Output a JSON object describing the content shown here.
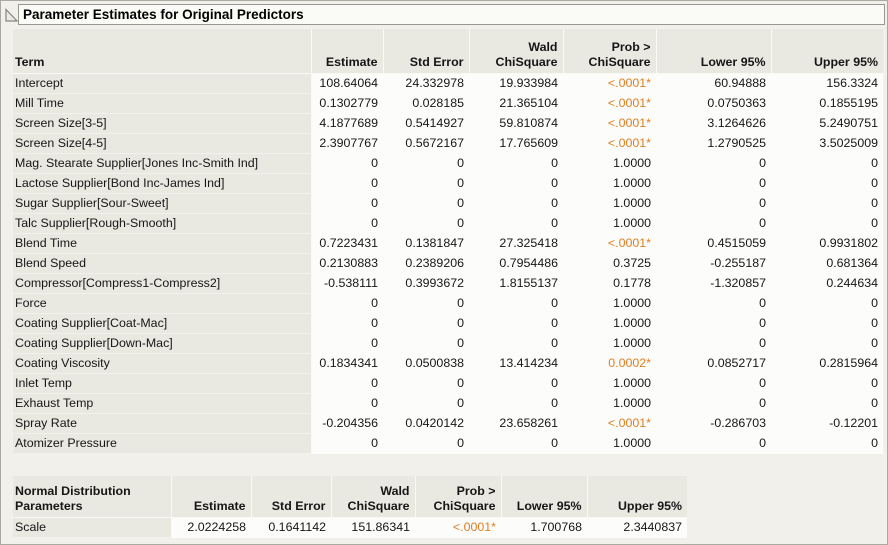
{
  "title": "Parameter Estimates for Original Predictors",
  "colors": {
    "significant": "#df7d1e",
    "header_bg": "#e9e8e1",
    "cell_bg": "#fcfcfb",
    "page_bg": "#f1f0ea"
  },
  "main_table": {
    "headers": [
      {
        "line1": "",
        "line2": "Term"
      },
      {
        "line1": "",
        "line2": "Estimate"
      },
      {
        "line1": "",
        "line2": "Std Error"
      },
      {
        "line1": "Wald",
        "line2": "ChiSquare"
      },
      {
        "line1": "Prob >",
        "line2": "ChiSquare"
      },
      {
        "line1": "",
        "line2": "Lower 95%"
      },
      {
        "line1": "",
        "line2": "Upper 95%"
      }
    ],
    "rows": [
      {
        "term": "Intercept",
        "estimate": "108.64064",
        "std_error": "24.332978",
        "wald": "19.933984",
        "prob": "<.0001*",
        "lower": "60.94888",
        "upper": "156.3324"
      },
      {
        "term": "Mill Time",
        "estimate": "0.1302779",
        "std_error": "0.028185",
        "wald": "21.365104",
        "prob": "<.0001*",
        "lower": "0.0750363",
        "upper": "0.1855195"
      },
      {
        "term": "Screen Size[3-5]",
        "estimate": "4.1877689",
        "std_error": "0.5414927",
        "wald": "59.810874",
        "prob": "<.0001*",
        "lower": "3.1264626",
        "upper": "5.2490751"
      },
      {
        "term": "Screen Size[4-5]",
        "estimate": "2.3907767",
        "std_error": "0.5672167",
        "wald": "17.765609",
        "prob": "<.0001*",
        "lower": "1.2790525",
        "upper": "3.5025009"
      },
      {
        "term": "Mag. Stearate Supplier[Jones Inc-Smith Ind]",
        "estimate": "0",
        "std_error": "0",
        "wald": "0",
        "prob": "1.0000",
        "lower": "0",
        "upper": "0"
      },
      {
        "term": "Lactose Supplier[Bond Inc-James Ind]",
        "estimate": "0",
        "std_error": "0",
        "wald": "0",
        "prob": "1.0000",
        "lower": "0",
        "upper": "0"
      },
      {
        "term": "Sugar Supplier[Sour-Sweet]",
        "estimate": "0",
        "std_error": "0",
        "wald": "0",
        "prob": "1.0000",
        "lower": "0",
        "upper": "0"
      },
      {
        "term": "Talc Supplier[Rough-Smooth]",
        "estimate": "0",
        "std_error": "0",
        "wald": "0",
        "prob": "1.0000",
        "lower": "0",
        "upper": "0"
      },
      {
        "term": "Blend Time",
        "estimate": "0.7223431",
        "std_error": "0.1381847",
        "wald": "27.325418",
        "prob": "<.0001*",
        "lower": "0.4515059",
        "upper": "0.9931802"
      },
      {
        "term": "Blend Speed",
        "estimate": "0.2130883",
        "std_error": "0.2389206",
        "wald": "0.7954486",
        "prob": "0.3725",
        "lower": "-0.255187",
        "upper": "0.681364"
      },
      {
        "term": "Compressor[Compress1-Compress2]",
        "estimate": "-0.538111",
        "std_error": "0.3993672",
        "wald": "1.8155137",
        "prob": "0.1778",
        "lower": "-1.320857",
        "upper": "0.244634"
      },
      {
        "term": "Force",
        "estimate": "0",
        "std_error": "0",
        "wald": "0",
        "prob": "1.0000",
        "lower": "0",
        "upper": "0"
      },
      {
        "term": "Coating Supplier[Coat-Mac]",
        "estimate": "0",
        "std_error": "0",
        "wald": "0",
        "prob": "1.0000",
        "lower": "0",
        "upper": "0"
      },
      {
        "term": "Coating Supplier[Down-Mac]",
        "estimate": "0",
        "std_error": "0",
        "wald": "0",
        "prob": "1.0000",
        "lower": "0",
        "upper": "0"
      },
      {
        "term": "Coating Viscosity",
        "estimate": "0.1834341",
        "std_error": "0.0500838",
        "wald": "13.414234",
        "prob": "0.0002*",
        "lower": "0.0852717",
        "upper": "0.2815964"
      },
      {
        "term": "Inlet Temp",
        "estimate": "0",
        "std_error": "0",
        "wald": "0",
        "prob": "1.0000",
        "lower": "0",
        "upper": "0"
      },
      {
        "term": "Exhaust Temp",
        "estimate": "0",
        "std_error": "0",
        "wald": "0",
        "prob": "1.0000",
        "lower": "0",
        "upper": "0"
      },
      {
        "term": "Spray Rate",
        "estimate": "-0.204356",
        "std_error": "0.0420142",
        "wald": "23.658261",
        "prob": "<.0001*",
        "lower": "-0.286703",
        "upper": "-0.12201"
      },
      {
        "term": "Atomizer Pressure",
        "estimate": "0",
        "std_error": "0",
        "wald": "0",
        "prob": "1.0000",
        "lower": "0",
        "upper": "0"
      }
    ]
  },
  "scale_table": {
    "headers": [
      {
        "line1": "Normal Distribution",
        "line2": "Parameters"
      },
      {
        "line1": "",
        "line2": "Estimate"
      },
      {
        "line1": "",
        "line2": "Std Error"
      },
      {
        "line1": "Wald",
        "line2": "ChiSquare"
      },
      {
        "line1": "Prob >",
        "line2": "ChiSquare"
      },
      {
        "line1": "",
        "line2": "Lower 95%"
      },
      {
        "line1": "",
        "line2": "Upper 95%"
      }
    ],
    "rows": [
      {
        "term": "Scale",
        "estimate": "2.0224258",
        "std_error": "0.1641142",
        "wald": "151.86341",
        "prob": "<.0001*",
        "lower": "1.700768",
        "upper": "2.3440837"
      }
    ]
  }
}
